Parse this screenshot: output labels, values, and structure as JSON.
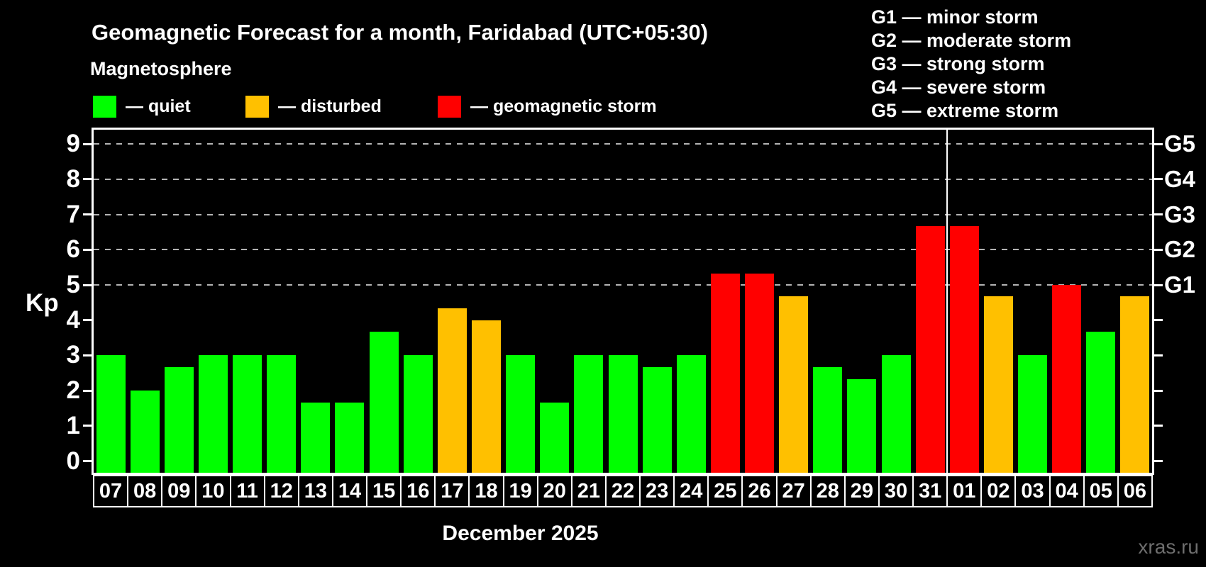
{
  "title": "Geomagnetic Forecast for a month, Faridabad (UTC+05:30)",
  "subtitle": "Magnetosphere",
  "legend": {
    "items": [
      {
        "status": "quiet",
        "label": "— quiet"
      },
      {
        "status": "disturbed",
        "label": "— disturbed"
      },
      {
        "status": "storm",
        "label": "— geomagnetic storm"
      }
    ]
  },
  "storm_scale_legend": {
    "lines": [
      "G1 — minor storm",
      "G2 — moderate storm",
      "G3 — strong storm",
      "G4 — severe storm",
      "G5 — extreme storm"
    ]
  },
  "watermark": "xras.ru",
  "chart_data": {
    "type": "bar",
    "title": "Geomagnetic Forecast for a month, Faridabad (UTC+05:30)",
    "subtitle": "Magnetosphere",
    "ylabel": "Kp",
    "month_label": "December 2025",
    "ylim": [
      0,
      9
    ],
    "yticks": [
      0,
      1,
      2,
      3,
      4,
      5,
      6,
      7,
      8,
      9
    ],
    "grid": "horizontal dashed lines at Kp 5,6,7,8,9 only",
    "legend_position": "top-left",
    "categories": [
      "07",
      "08",
      "09",
      "10",
      "11",
      "12",
      "13",
      "14",
      "15",
      "16",
      "17",
      "18",
      "19",
      "20",
      "21",
      "22",
      "23",
      "24",
      "25",
      "26",
      "27",
      "28",
      "29",
      "30",
      "31",
      "01",
      "02",
      "03",
      "04",
      "05",
      "06"
    ],
    "values": [
      3,
      2,
      2.67,
      3,
      3,
      3,
      1.67,
      1.67,
      3.67,
      3,
      4.33,
      4,
      3,
      1.67,
      3,
      3,
      2.67,
      3,
      5.33,
      5.33,
      4.67,
      2.67,
      2.33,
      3,
      6.67,
      6.67,
      4.67,
      3,
      5,
      3.67,
      4.67
    ],
    "statuses": [
      "quiet",
      "quiet",
      "quiet",
      "quiet",
      "quiet",
      "quiet",
      "quiet",
      "quiet",
      "quiet",
      "quiet",
      "disturbed",
      "disturbed",
      "quiet",
      "quiet",
      "quiet",
      "quiet",
      "quiet",
      "quiet",
      "storm",
      "storm",
      "disturbed",
      "quiet",
      "quiet",
      "quiet",
      "storm",
      "storm",
      "disturbed",
      "quiet",
      "storm",
      "quiet",
      "disturbed"
    ],
    "status_colors": {
      "quiet": "#00ff00",
      "disturbed": "#ffc000",
      "storm": "#ff0000"
    },
    "right_axis_labels": [
      {
        "label": "G1",
        "kp": 5
      },
      {
        "label": "G2",
        "kp": 6
      },
      {
        "label": "G3",
        "kp": 7
      },
      {
        "label": "G4",
        "kp": 8
      },
      {
        "label": "G5",
        "kp": 9
      }
    ],
    "year_divider_after": "31"
  }
}
